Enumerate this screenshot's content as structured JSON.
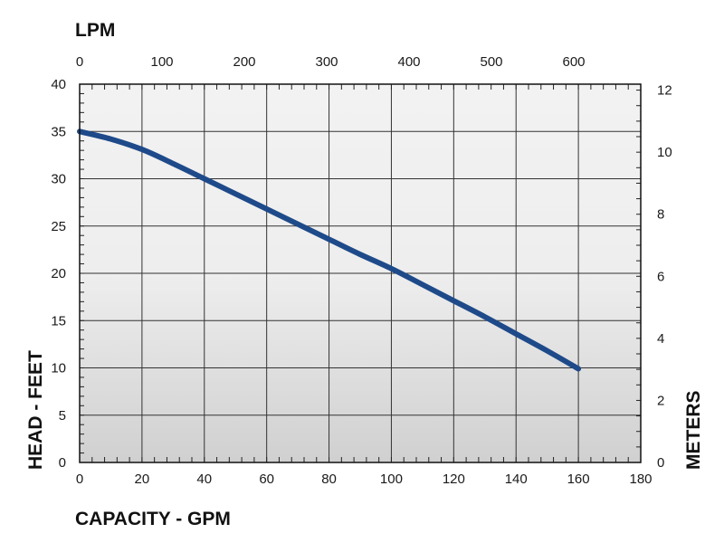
{
  "chart_data": {
    "type": "line",
    "title": "",
    "xlabel": "CAPACITY - GPM",
    "ylabel": "HEAD - FEET",
    "x2label": "LPM",
    "y2label": "METERS",
    "xlim": [
      0,
      180
    ],
    "ylim": [
      0,
      40
    ],
    "x_ticks": [
      0,
      20,
      40,
      60,
      80,
      100,
      120,
      140,
      160,
      180
    ],
    "y_ticks": [
      0,
      5,
      10,
      15,
      20,
      25,
      30,
      35,
      40
    ],
    "x2_ticks": [
      0,
      100,
      200,
      300,
      400,
      500,
      600
    ],
    "y2_ticks": [
      0,
      2,
      4,
      6,
      8,
      10,
      12
    ],
    "grid": true,
    "series": [
      {
        "name": "",
        "color": "#1e4a8a",
        "x": [
          0,
          10,
          20,
          30,
          40,
          50,
          60,
          70,
          80,
          90,
          100,
          110,
          120,
          130,
          140,
          150,
          160
        ],
        "y": [
          35,
          34.2,
          33.1,
          31.6,
          30.0,
          28.4,
          26.8,
          25.2,
          23.6,
          22.0,
          20.5,
          18.8,
          17.1,
          15.4,
          13.6,
          11.8,
          9.9
        ]
      }
    ]
  }
}
